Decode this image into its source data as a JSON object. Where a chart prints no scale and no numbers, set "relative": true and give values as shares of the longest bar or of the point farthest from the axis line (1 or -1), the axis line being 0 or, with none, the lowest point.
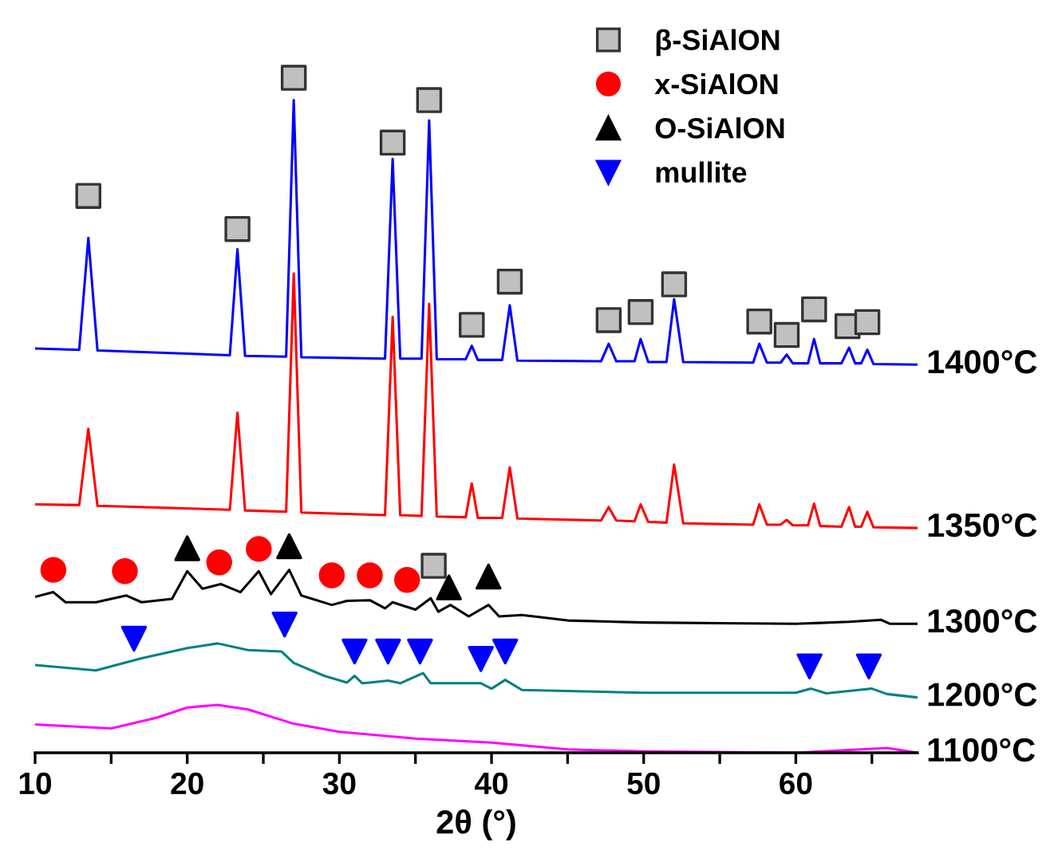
{
  "chart_data": {
    "type": "line",
    "relative": true,
    "xlabel": "2θ (°)",
    "xlim": [
      10,
      68
    ],
    "xticks": [
      10,
      {
        "value": 15,
        "label": null
      },
      20,
      {
        "value": 25,
        "label": null
      },
      30,
      {
        "value": 35,
        "label": null
      },
      40,
      {
        "value": 45,
        "label": null
      },
      50,
      {
        "value": 55,
        "label": null
      },
      60,
      {
        "value": 65,
        "label": null
      }
    ],
    "tick_labels": "x",
    "grid": false,
    "legend": "top right",
    "marker": "none",
    "line_style": "solid",
    "series": [
      {
        "name": "1400°C",
        "color": "#0000ff",
        "x": [
          10,
          12.9,
          13.5,
          14.1,
          22.8,
          23.3,
          23.8,
          26.5,
          27.0,
          27.5,
          33.0,
          33.5,
          34.0,
          35.4,
          35.9,
          36.4,
          38.3,
          38.7,
          39.1,
          40.7,
          41.2,
          41.7,
          47.2,
          47.7,
          48.2,
          49.4,
          49.8,
          50.3,
          51.5,
          52.0,
          52.6,
          57.2,
          57.6,
          58.1,
          59.0,
          59.4,
          59.8,
          60.8,
          61.2,
          61.6,
          63.0,
          63.5,
          63.9,
          64.3,
          64.7,
          65.1,
          68
        ],
        "values": [
          0.599,
          0.597,
          0.763,
          0.596,
          0.589,
          0.746,
          0.588,
          0.587,
          0.967,
          0.586,
          0.584,
          0.88,
          0.584,
          0.584,
          0.937,
          0.583,
          0.583,
          0.603,
          0.582,
          0.582,
          0.663,
          0.581,
          0.58,
          0.606,
          0.58,
          0.58,
          0.613,
          0.579,
          0.579,
          0.672,
          0.579,
          0.578,
          0.606,
          0.578,
          0.578,
          0.59,
          0.577,
          0.577,
          0.613,
          0.577,
          0.577,
          0.6,
          0.577,
          0.577,
          0.597,
          0.576,
          0.575
        ]
      },
      {
        "name": "1350°C",
        "color": "#ff0000",
        "x": [
          10,
          12.9,
          13.5,
          14.1,
          22.8,
          23.3,
          23.8,
          26.5,
          27.0,
          27.5,
          33.0,
          33.5,
          34.0,
          35.4,
          35.9,
          36.4,
          38.3,
          38.7,
          39.1,
          40.7,
          41.2,
          41.7,
          47.2,
          47.7,
          48.2,
          49.4,
          49.8,
          50.3,
          51.5,
          52.0,
          52.6,
          57.2,
          57.6,
          58.1,
          59.0,
          59.4,
          59.8,
          60.8,
          61.2,
          61.6,
          63.0,
          63.5,
          63.9,
          64.3,
          64.7,
          65.1,
          68
        ],
        "values": [
          0.368,
          0.367,
          0.48,
          0.366,
          0.36,
          0.504,
          0.359,
          0.357,
          0.71,
          0.356,
          0.352,
          0.646,
          0.352,
          0.351,
          0.665,
          0.35,
          0.349,
          0.399,
          0.348,
          0.348,
          0.423,
          0.347,
          0.344,
          0.364,
          0.344,
          0.343,
          0.368,
          0.342,
          0.341,
          0.427,
          0.34,
          0.338,
          0.368,
          0.338,
          0.338,
          0.345,
          0.337,
          0.337,
          0.369,
          0.336,
          0.335,
          0.364,
          0.335,
          0.335,
          0.357,
          0.334,
          0.333
        ]
      },
      {
        "name": "1300°C",
        "color": "#000000",
        "x": [
          10,
          11.2,
          12,
          14,
          16,
          17,
          19,
          20,
          21,
          22.2,
          23.5,
          24.7,
          25.5,
          26.7,
          27.5,
          29.5,
          30.5,
          32,
          33,
          33.5,
          35,
          36,
          36.5,
          37.3,
          38.5,
          39.8,
          40.5,
          42,
          45,
          50,
          55,
          60,
          63.5,
          65.6,
          66.2,
          68
        ],
        "values": [
          0.231,
          0.238,
          0.223,
          0.223,
          0.233,
          0.223,
          0.228,
          0.269,
          0.243,
          0.25,
          0.238,
          0.269,
          0.235,
          0.271,
          0.233,
          0.219,
          0.225,
          0.226,
          0.214,
          0.223,
          0.212,
          0.229,
          0.209,
          0.219,
          0.202,
          0.219,
          0.202,
          0.204,
          0.196,
          0.193,
          0.192,
          0.191,
          0.194,
          0.197,
          0.191,
          0.191
        ]
      },
      {
        "name": "1200°C",
        "color": "#008080",
        "x": [
          10,
          14,
          17,
          20,
          22,
          24,
          26.2,
          27,
          29,
          30.5,
          31,
          31.5,
          32,
          33.2,
          34,
          35.5,
          36,
          39.3,
          40,
          40.9,
          42,
          50,
          60,
          61,
          62,
          65,
          66,
          68
        ],
        "values": [
          0.13,
          0.122,
          0.14,
          0.155,
          0.162,
          0.152,
          0.15,
          0.133,
          0.114,
          0.104,
          0.114,
          0.103,
          0.104,
          0.107,
          0.103,
          0.118,
          0.103,
          0.103,
          0.095,
          0.108,
          0.093,
          0.089,
          0.089,
          0.095,
          0.088,
          0.095,
          0.087,
          0.082
        ]
      },
      {
        "name": "1100°C",
        "color": "#ff00ff",
        "x": [
          10,
          15,
          18,
          20,
          22,
          24,
          27,
          30,
          35,
          40,
          45,
          50,
          60,
          66,
          68
        ],
        "values": [
          0.042,
          0.036,
          0.052,
          0.067,
          0.071,
          0.064,
          0.043,
          0.031,
          0.021,
          0.015,
          0.005,
          0.002,
          0,
          0.007,
          0
        ]
      },
      {
        "name": "β-SiAlON",
        "type": "scatter",
        "marker": "square",
        "color": "#c0c0c0",
        "x": [
          13.5,
          23.3,
          27.0,
          33.5,
          35.9,
          38.7,
          41.2,
          47.7,
          49.8,
          52.0,
          57.6,
          59.4,
          61.2,
          63.4,
          64.7,
          36.2
        ],
        "values": [
          0.825,
          0.776,
          1.0,
          0.904,
          0.967,
          0.634,
          0.698,
          0.641,
          0.653,
          0.694,
          0.639,
          0.619,
          0.657,
          0.632,
          0.638,
          0.277
        ]
      },
      {
        "name": "x-SiAlON",
        "type": "scatter",
        "marker": "circle",
        "color": "#ff0000",
        "x": [
          11.2,
          15.9,
          22.1,
          24.7,
          29.5,
          32.0,
          34.45
        ],
        "values": [
          0.271,
          0.269,
          0.282,
          0.302,
          0.263,
          0.263,
          0.256
        ]
      },
      {
        "name": "O-SiAlON",
        "type": "scatter",
        "marker": "triangle",
        "color": "#000000",
        "x": [
          20.0,
          26.7,
          37.2,
          39.8
        ],
        "values": [
          0.303,
          0.306,
          0.245,
          0.261
        ]
      },
      {
        "name": "mullite",
        "type": "scatter",
        "marker": "triangle-down",
        "color": "#0000ff",
        "x": [
          16.5,
          26.4,
          31.0,
          33.2,
          35.3,
          39.3,
          40.9,
          60.9,
          64.8
        ],
        "values": [
          0.169,
          0.19,
          0.15,
          0.15,
          0.15,
          0.139,
          0.15,
          0.128,
          0.128
        ]
      }
    ]
  }
}
